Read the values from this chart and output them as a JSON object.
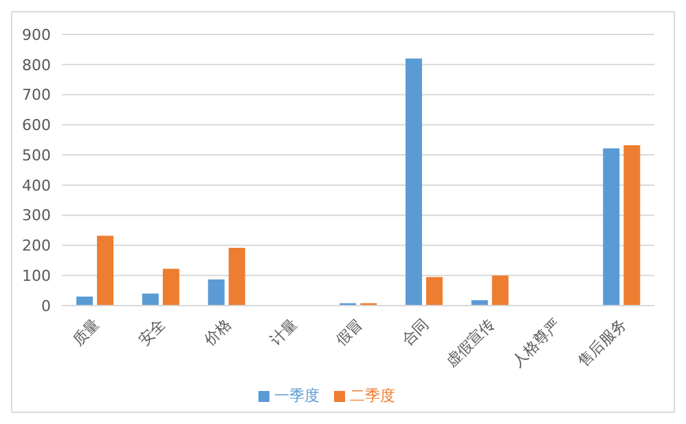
{
  "chart_data": {
    "type": "bar",
    "categories": [
      "质量",
      "安全",
      "价格",
      "计量",
      "假冒",
      "合同",
      "虚假宣传",
      "人格尊严",
      "售后服务"
    ],
    "series": [
      {
        "name": "一季度",
        "color": "#5b9bd5",
        "values": [
          30,
          40,
          87,
          0,
          8,
          820,
          18,
          0,
          522
        ]
      },
      {
        "name": "二季度",
        "color": "#ed7d31",
        "values": [
          232,
          122,
          192,
          0,
          8,
          95,
          100,
          0,
          532
        ]
      }
    ],
    "ylim": [
      0,
      900
    ],
    "yticks": [
      0,
      100,
      200,
      300,
      400,
      500,
      600,
      700,
      800,
      900
    ],
    "grid": "y",
    "legend": "bottom"
  }
}
